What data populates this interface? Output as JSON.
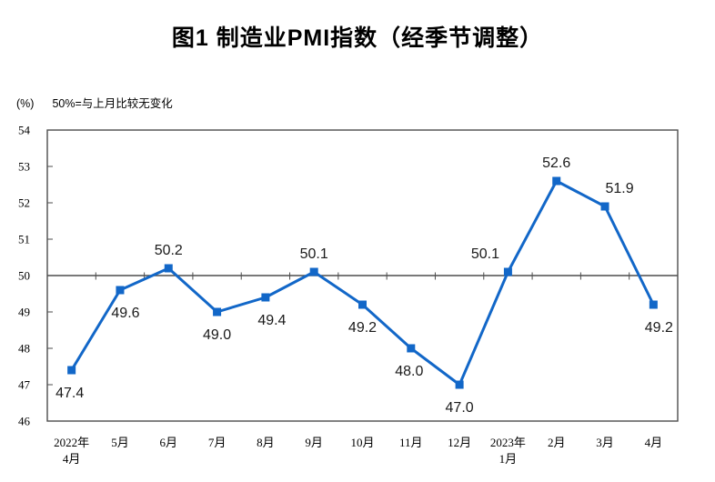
{
  "chart_data": {
    "type": "line",
    "title": "图1 制造业PMI指数（经季节调整）",
    "ylabel": "(%)",
    "reference_note": "50%=与上月比较无变化",
    "categories": [
      [
        "2022年",
        "4月"
      ],
      [
        "5月"
      ],
      [
        "6月"
      ],
      [
        "7月"
      ],
      [
        "8月"
      ],
      [
        "9月"
      ],
      [
        "10月"
      ],
      [
        "11月"
      ],
      [
        "12月"
      ],
      [
        "2023年",
        "1月"
      ],
      [
        "2月"
      ],
      [
        "3月"
      ],
      [
        "4月"
      ]
    ],
    "values": [
      47.4,
      49.6,
      50.2,
      49.0,
      49.4,
      50.1,
      49.2,
      48.0,
      47.0,
      50.1,
      52.6,
      51.9,
      49.2
    ],
    "ylim": [
      46,
      54
    ],
    "ytick_step": 1,
    "reference_value": 50,
    "grid": false,
    "legend": "none",
    "colors": {
      "line": "#1267C8",
      "marker": "#1267C8",
      "axis": "#4D4D4D",
      "data_label": "#1A1A1A",
      "tick_label": "#000000"
    },
    "label_placements": [
      {
        "pos": "below",
        "dx": -2
      },
      {
        "pos": "below",
        "dx": 6
      },
      {
        "pos": "above",
        "dx": 0
      },
      {
        "pos": "below",
        "dx": 0
      },
      {
        "pos": "below",
        "dx": 7
      },
      {
        "pos": "above",
        "dx": 0
      },
      {
        "pos": "below",
        "dx": 0
      },
      {
        "pos": "below",
        "dx": -2
      },
      {
        "pos": "below",
        "dx": 0
      },
      {
        "pos": "above",
        "dx": -25
      },
      {
        "pos": "above",
        "dx": 0
      },
      {
        "pos": "above",
        "dx": 16
      },
      {
        "pos": "below",
        "dx": 6
      }
    ]
  }
}
